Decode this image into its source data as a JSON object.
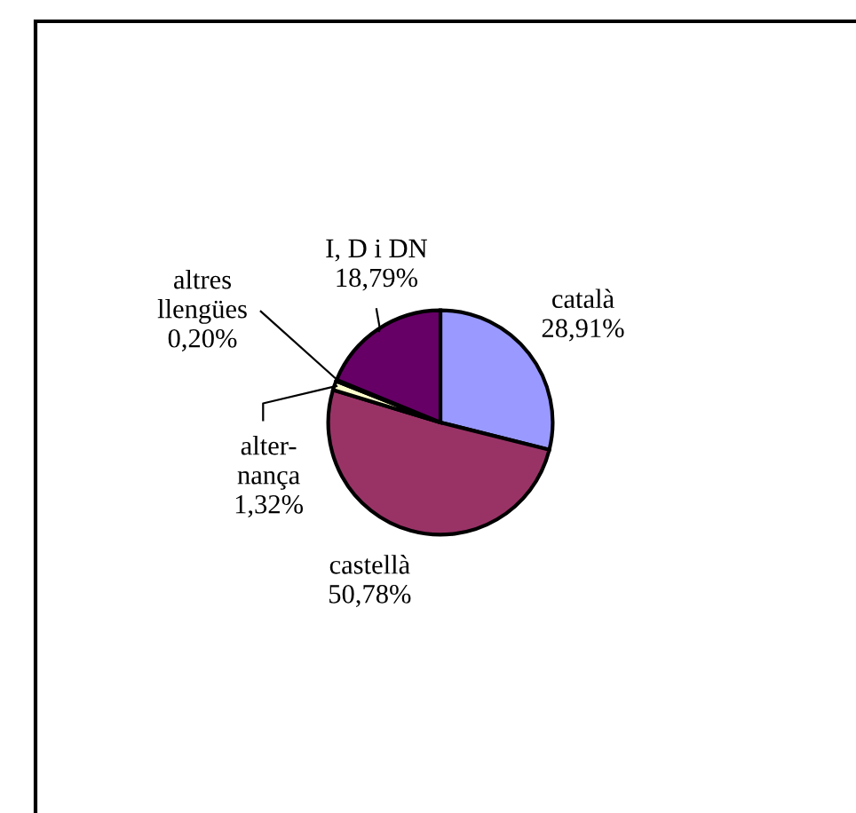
{
  "chart_data": {
    "type": "pie",
    "categories": [
      "català",
      "castellà",
      "alter-\nnança",
      "altres\nllengües",
      "I, D i DN"
    ],
    "values": [
      28.91,
      50.78,
      1.32,
      0.2,
      18.79
    ],
    "value_labels": [
      "28,91%",
      "50,78%",
      "1,32%",
      "0,20%",
      "18,79%"
    ],
    "colors": [
      "#9999ff",
      "#993366",
      "#ffffcc",
      "#ccffff",
      "#660066"
    ]
  }
}
